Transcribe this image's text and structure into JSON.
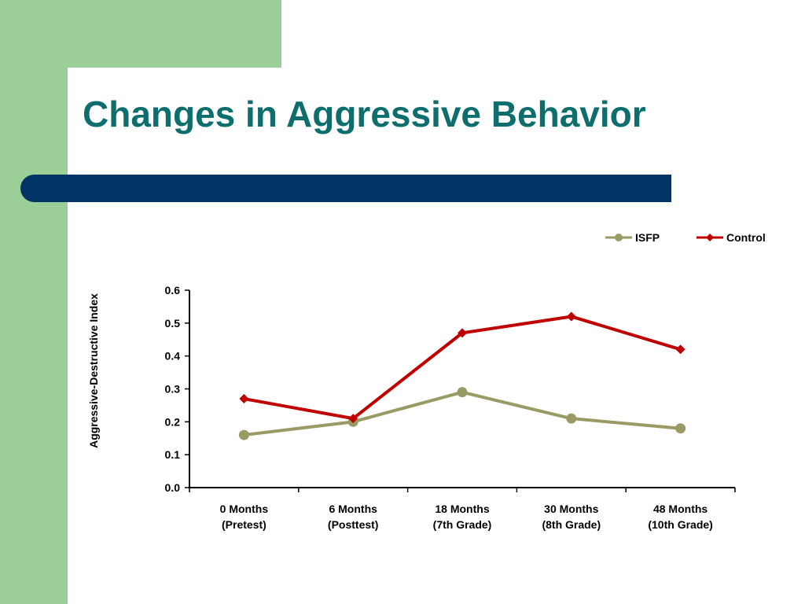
{
  "slide": {
    "title": "Changes in Aggressive Behavior",
    "colors": {
      "title": "#0e6e6e",
      "accent_green": "#9ccf98",
      "accent_blue": "#003366"
    }
  },
  "chart_data": {
    "type": "line",
    "title": "",
    "ylabel": "Aggressive-Destructive Index",
    "xlabel": "",
    "ylim": [
      0,
      0.6
    ],
    "yticks": [
      "0.0",
      "0.1",
      "0.2",
      "0.3",
      "0.4",
      "0.5",
      "0.6"
    ],
    "categories": [
      [
        "0 Months",
        "(Pretest)"
      ],
      [
        "6 Months",
        "(Posttest)"
      ],
      [
        "18 Months",
        "(7th Grade)"
      ],
      [
        "30 Months",
        "(8th Grade)"
      ],
      [
        "48 Months",
        "(10th Grade)"
      ]
    ],
    "legend_position": "top-right",
    "grid": false,
    "series": [
      {
        "name": "ISFP",
        "color": "#9a9a64",
        "marker": "circle",
        "values": [
          0.16,
          0.2,
          0.29,
          0.21,
          0.18
        ]
      },
      {
        "name": "Control",
        "color": "#c00000",
        "marker": "diamond",
        "values": [
          0.27,
          0.21,
          0.47,
          0.52,
          0.42
        ]
      }
    ]
  }
}
